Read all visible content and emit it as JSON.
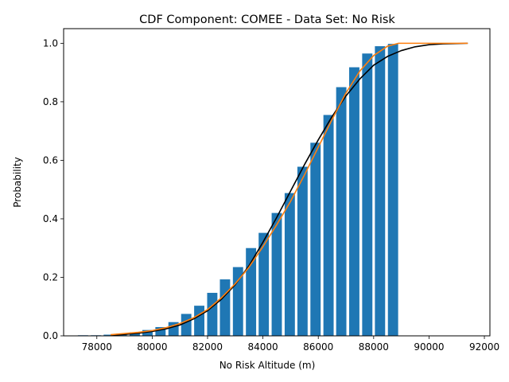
{
  "chart_data": {
    "type": "bar",
    "title": "CDF Component: COMEE - Data Set: No Risk",
    "xlabel": "No Risk Altitude (m)",
    "ylabel": "Probability",
    "xlim": [
      76800,
      92200
    ],
    "ylim": [
      0,
      1.05
    ],
    "x_ticks": [
      78000,
      80000,
      82000,
      84000,
      86000,
      88000,
      90000,
      92000
    ],
    "y_ticks": [
      0.0,
      0.2,
      0.4,
      0.6,
      0.8,
      1.0
    ],
    "grid": false,
    "bar_color": "#1f77b4",
    "bar_width": 370,
    "bars": {
      "x": [
        77500,
        77970,
        78430,
        78900,
        79370,
        79830,
        80300,
        80770,
        81230,
        81700,
        82170,
        82630,
        83100,
        83570,
        84030,
        84500,
        84970,
        85430,
        85900,
        86370,
        86830,
        87300,
        87770,
        88230,
        88700
      ],
      "values": [
        0.002,
        0.002,
        0.004,
        0.008,
        0.012,
        0.02,
        0.03,
        0.047,
        0.075,
        0.103,
        0.147,
        0.193,
        0.235,
        0.3,
        0.352,
        0.42,
        0.488,
        0.578,
        0.66,
        0.755,
        0.85,
        0.918,
        0.965,
        0.99,
        0.998
      ]
    },
    "series": [
      {
        "type": "line",
        "color": "#000000",
        "x": [
          78500,
          79000,
          79500,
          80000,
          80500,
          81000,
          81500,
          82000,
          82500,
          83000,
          83500,
          84000,
          84500,
          85000,
          85500,
          86000,
          86500,
          87000,
          87500,
          88000,
          88500,
          89000,
          89500,
          90000,
          90500,
          91000,
          91400
        ],
        "values": [
          0.002,
          0.005,
          0.009,
          0.015,
          0.024,
          0.037,
          0.058,
          0.086,
          0.125,
          0.175,
          0.24,
          0.32,
          0.405,
          0.495,
          0.585,
          0.67,
          0.75,
          0.82,
          0.878,
          0.925,
          0.955,
          0.975,
          0.988,
          0.995,
          0.998,
          0.999,
          1.0
        ]
      },
      {
        "type": "line",
        "color": "#ff7f0e",
        "x": [
          78500,
          79000,
          79500,
          80000,
          80500,
          81000,
          81500,
          82000,
          82500,
          83000,
          83500,
          84000,
          84500,
          85000,
          85500,
          86000,
          86500,
          87000,
          87500,
          88000,
          88500,
          88900,
          89500,
          90000,
          91000,
          91400
        ],
        "values": [
          0.004,
          0.008,
          0.012,
          0.018,
          0.028,
          0.042,
          0.062,
          0.09,
          0.13,
          0.178,
          0.235,
          0.305,
          0.38,
          0.46,
          0.55,
          0.645,
          0.74,
          0.83,
          0.905,
          0.958,
          0.99,
          1.0,
          1.0,
          1.0,
          1.0,
          1.0
        ]
      }
    ]
  }
}
